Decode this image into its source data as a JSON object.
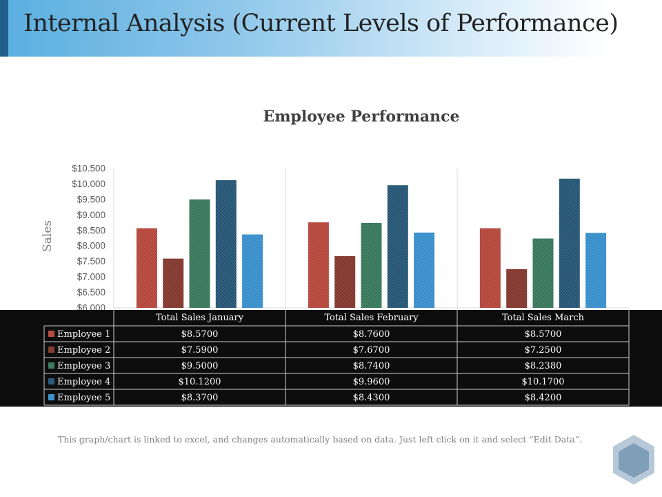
{
  "slide": {
    "title": "Internal Analysis (Current Levels of Performance)",
    "footer_note": "This graph/chart is linked to excel, and changes automatically based on data. Just left click on it and select “Edit Data”."
  },
  "colors": {
    "title_gradient_start": "#5aaee0",
    "title_accent": "#1f5f8b",
    "table_background": "#0d0d0d",
    "logo": "#7f9fb8"
  },
  "chart_data": {
    "type": "bar",
    "title": "Employee Performance",
    "ylabel": "Sales",
    "xlabel": "",
    "ylim": [
      6.0,
      10.5
    ],
    "yticks": [
      "$10.500",
      "$10.000",
      "$9.500",
      "$9.000",
      "$8.500",
      "$8.000",
      "$7.500",
      "$7.000",
      "$6.500",
      "$6.000"
    ],
    "ytick_values": [
      10.5,
      10.0,
      9.5,
      9.0,
      8.5,
      8.0,
      7.5,
      7.0,
      6.5,
      6.0
    ],
    "grid": false,
    "legend": "data-table",
    "categories": [
      "Total Sales January",
      "Total Sales February",
      "Total Sales March"
    ],
    "series": [
      {
        "name": "Employee 1",
        "values": [
          8.57,
          8.76,
          8.57
        ],
        "labels": [
          "$8.5700",
          "$8.7600",
          "$8.5700"
        ],
        "color": "#b03a2e"
      },
      {
        "name": "Employee 2",
        "values": [
          7.59,
          7.67,
          7.25
        ],
        "labels": [
          "$7.5900",
          "$7.6700",
          "$7.2500"
        ],
        "color": "#7a2a20"
      },
      {
        "name": "Employee 3",
        "values": [
          9.5,
          8.74,
          8.238
        ],
        "labels": [
          "$9.5000",
          "$8.7400",
          "$8.2380"
        ],
        "color": "#2b6e50"
      },
      {
        "name": "Employee 4",
        "values": [
          10.12,
          9.96,
          10.17
        ],
        "labels": [
          "$10.1200",
          "$9.9600",
          "$10.1700"
        ],
        "color": "#174a6b"
      },
      {
        "name": "Employee 5",
        "values": [
          8.37,
          8.43,
          8.42
        ],
        "labels": [
          "$8.3700",
          "$8.4300",
          "$8.4200"
        ],
        "color": "#2b87c7"
      }
    ]
  }
}
